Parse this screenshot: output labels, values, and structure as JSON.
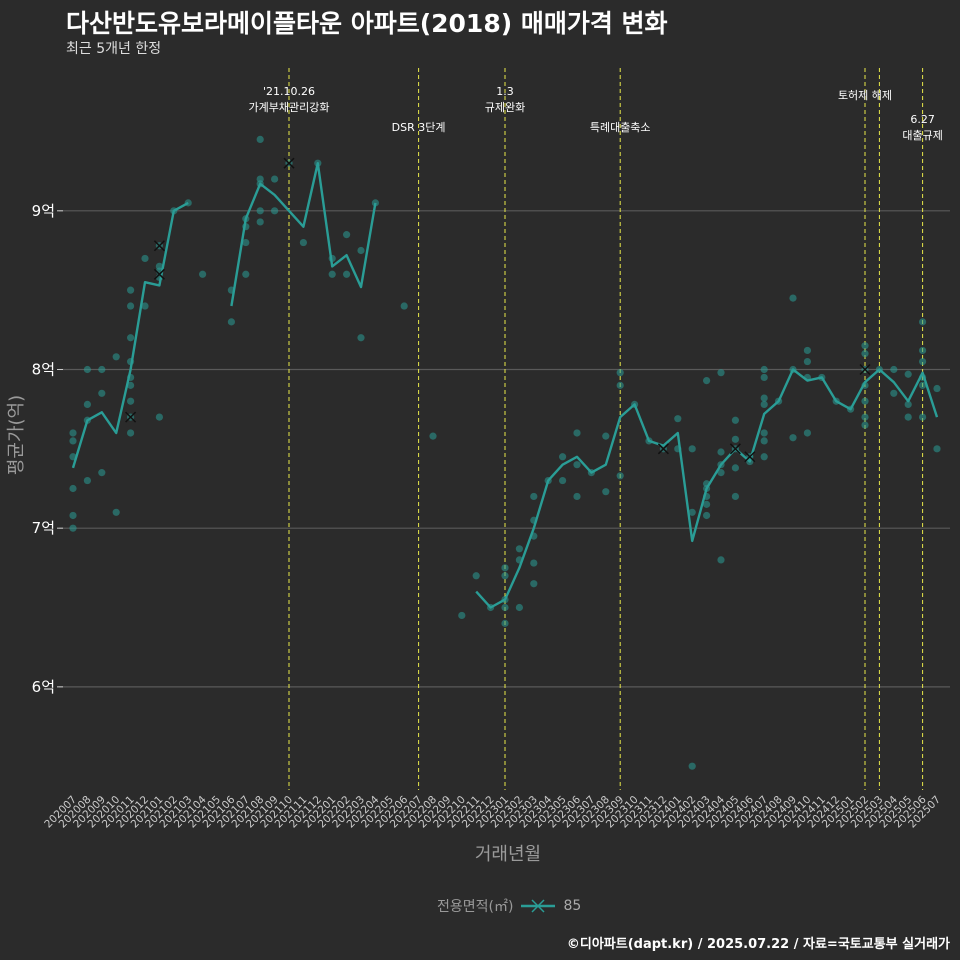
{
  "title": "다산반도유보라메이플타운 아파트(2018) 매매가격 변화",
  "subtitle": "최근 5개년 한정",
  "caption": "©디아파트(dapt.kr) / 2025.07.22 / 자료=국토교통부 실거래가",
  "colors": {
    "background": "#2b2b2b",
    "series": "#2a9d96",
    "grid": "#5a5a5a",
    "event_line": "#e8e84a"
  },
  "legend": {
    "title": "전용면적(㎡)",
    "items": [
      "85"
    ]
  },
  "chart_data": {
    "type": "line",
    "xlabel": "거래년월",
    "ylabel": "평균가(억)",
    "ylim": [
      5.35,
      9.9
    ],
    "yticks": [
      6,
      7,
      8,
      9
    ],
    "ytick_labels": [
      "6억",
      "7억",
      "8억",
      "9억"
    ],
    "grid": true,
    "categories": [
      "202007",
      "202008",
      "202009",
      "202010",
      "202011",
      "202012",
      "202101",
      "202102",
      "202103",
      "202104",
      "202105",
      "202106",
      "202107",
      "202108",
      "202109",
      "202110",
      "202111",
      "202112",
      "202201",
      "202202",
      "202203",
      "202204",
      "202205",
      "202206",
      "202207",
      "202208",
      "202209",
      "202210",
      "202211",
      "202212",
      "202301",
      "202302",
      "202303",
      "202304",
      "202305",
      "202306",
      "202307",
      "202308",
      "202309",
      "202310",
      "202311",
      "202312",
      "202401",
      "202402",
      "202403",
      "202404",
      "202405",
      "202406",
      "202407",
      "202408",
      "202409",
      "202410",
      "202411",
      "202412",
      "202501",
      "202502",
      "202503",
      "202504",
      "202505",
      "202506",
      "202507"
    ],
    "series": [
      {
        "name": "85",
        "mean_values": [
          7.38,
          7.68,
          7.73,
          7.6,
          8.0,
          8.55,
          8.53,
          9.0,
          9.05,
          null,
          null,
          8.4,
          8.95,
          9.17,
          9.1,
          9.0,
          8.9,
          9.3,
          8.65,
          8.72,
          8.52,
          9.05,
          null,
          null,
          null,
          null,
          null,
          null,
          6.6,
          6.5,
          6.55,
          6.75,
          7.0,
          7.3,
          7.4,
          7.45,
          7.35,
          7.4,
          7.7,
          7.78,
          7.55,
          7.52,
          7.6,
          6.92,
          7.25,
          7.4,
          7.5,
          7.42,
          7.72,
          7.8,
          8.0,
          7.93,
          7.95,
          7.8,
          7.75,
          7.92,
          8.0,
          7.92,
          7.8,
          7.98,
          7.7
        ],
        "transactions": [
          [
            0,
            7.0
          ],
          [
            0,
            7.08
          ],
          [
            0,
            7.25
          ],
          [
            0,
            7.45
          ],
          [
            0,
            7.55
          ],
          [
            0,
            7.6
          ],
          [
            1,
            7.3
          ],
          [
            1,
            7.68
          ],
          [
            1,
            7.78
          ],
          [
            1,
            8.0
          ],
          [
            2,
            7.35
          ],
          [
            2,
            7.85
          ],
          [
            2,
            8.0
          ],
          [
            3,
            7.1
          ],
          [
            3,
            8.08
          ],
          [
            4,
            7.6
          ],
          [
            4,
            7.7
          ],
          [
            4,
            7.8
          ],
          [
            4,
            7.9
          ],
          [
            4,
            7.95
          ],
          [
            4,
            8.05
          ],
          [
            4,
            8.2
          ],
          [
            4,
            8.4
          ],
          [
            4,
            8.5
          ],
          [
            5,
            8.4
          ],
          [
            5,
            8.7
          ],
          [
            6,
            7.7
          ],
          [
            6,
            8.58
          ],
          [
            6,
            8.62
          ],
          [
            6,
            8.65
          ],
          [
            6,
            8.78
          ],
          [
            7,
            9.0
          ],
          [
            8,
            9.05
          ],
          [
            9,
            8.6
          ],
          [
            11,
            8.3
          ],
          [
            11,
            8.5
          ],
          [
            12,
            8.6
          ],
          [
            12,
            8.8
          ],
          [
            12,
            8.9
          ],
          [
            12,
            8.95
          ],
          [
            13,
            8.93
          ],
          [
            13,
            9.0
          ],
          [
            13,
            9.17
          ],
          [
            13,
            9.2
          ],
          [
            13,
            9.45
          ],
          [
            14,
            9.0
          ],
          [
            14,
            9.2
          ],
          [
            15,
            9.3
          ],
          [
            16,
            8.8
          ],
          [
            17,
            9.3
          ],
          [
            18,
            8.6
          ],
          [
            18,
            8.7
          ],
          [
            19,
            8.6
          ],
          [
            19,
            8.85
          ],
          [
            20,
            8.2
          ],
          [
            20,
            8.75
          ],
          [
            21,
            9.05
          ],
          [
            23,
            8.4
          ],
          [
            25,
            7.58
          ],
          [
            27,
            6.45
          ],
          [
            28,
            6.7
          ],
          [
            29,
            6.5
          ],
          [
            30,
            6.4
          ],
          [
            30,
            6.5
          ],
          [
            30,
            6.55
          ],
          [
            30,
            6.7
          ],
          [
            30,
            6.75
          ],
          [
            31,
            6.5
          ],
          [
            31,
            6.8
          ],
          [
            31,
            6.87
          ],
          [
            32,
            6.65
          ],
          [
            32,
            6.78
          ],
          [
            32,
            6.95
          ],
          [
            32,
            7.05
          ],
          [
            32,
            7.2
          ],
          [
            33,
            7.3
          ],
          [
            34,
            7.3
          ],
          [
            34,
            7.45
          ],
          [
            35,
            7.2
          ],
          [
            35,
            7.4
          ],
          [
            35,
            7.6
          ],
          [
            36,
            7.35
          ],
          [
            37,
            7.23
          ],
          [
            37,
            7.58
          ],
          [
            38,
            7.33
          ],
          [
            38,
            7.9
          ],
          [
            38,
            7.98
          ],
          [
            39,
            7.78
          ],
          [
            40,
            7.55
          ],
          [
            41,
            7.5
          ],
          [
            42,
            7.5
          ],
          [
            42,
            7.69
          ],
          [
            43,
            5.5
          ],
          [
            43,
            7.1
          ],
          [
            43,
            7.5
          ],
          [
            44,
            7.08
          ],
          [
            44,
            7.15
          ],
          [
            44,
            7.2
          ],
          [
            44,
            7.25
          ],
          [
            44,
            7.28
          ],
          [
            44,
            7.93
          ],
          [
            45,
            6.8
          ],
          [
            45,
            7.35
          ],
          [
            45,
            7.4
          ],
          [
            45,
            7.48
          ],
          [
            45,
            7.98
          ],
          [
            46,
            7.2
          ],
          [
            46,
            7.38
          ],
          [
            46,
            7.5
          ],
          [
            46,
            7.56
          ],
          [
            46,
            7.68
          ],
          [
            47,
            7.42
          ],
          [
            47,
            7.45
          ],
          [
            48,
            7.45
          ],
          [
            48,
            7.55
          ],
          [
            48,
            7.6
          ],
          [
            48,
            7.78
          ],
          [
            48,
            7.82
          ],
          [
            48,
            7.95
          ],
          [
            48,
            8.0
          ],
          [
            49,
            7.8
          ],
          [
            50,
            7.57
          ],
          [
            50,
            8.0
          ],
          [
            50,
            8.45
          ],
          [
            51,
            7.6
          ],
          [
            51,
            7.95
          ],
          [
            51,
            8.05
          ],
          [
            51,
            8.12
          ],
          [
            52,
            7.95
          ],
          [
            53,
            7.8
          ],
          [
            54,
            7.75
          ],
          [
            55,
            7.65
          ],
          [
            55,
            7.7
          ],
          [
            55,
            7.8
          ],
          [
            55,
            7.9
          ],
          [
            55,
            8.0
          ],
          [
            55,
            8.1
          ],
          [
            55,
            8.15
          ],
          [
            56,
            8.0
          ],
          [
            57,
            7.85
          ],
          [
            57,
            8.0
          ],
          [
            58,
            7.7
          ],
          [
            58,
            7.78
          ],
          [
            58,
            7.97
          ],
          [
            59,
            7.7
          ],
          [
            59,
            7.9
          ],
          [
            59,
            7.95
          ],
          [
            59,
            8.05
          ],
          [
            59,
            8.12
          ],
          [
            59,
            8.3
          ],
          [
            60,
            7.5
          ],
          [
            60,
            7.88
          ]
        ],
        "crossed": [
          [
            4,
            7.7
          ],
          [
            6,
            8.6
          ],
          [
            6,
            8.78
          ],
          [
            15,
            9.3
          ],
          [
            41,
            7.5
          ],
          [
            46,
            7.5
          ],
          [
            47,
            7.45
          ],
          [
            55,
            8.0
          ]
        ]
      }
    ],
    "events": [
      {
        "index": 15,
        "line1": "'21.10.26",
        "line2": "가계부채관리강화",
        "row": 0
      },
      {
        "index": 24,
        "line1": "DSR 3단계",
        "line2": "",
        "row": 2
      },
      {
        "index": 30,
        "line1": "1.3",
        "line2": "규제완화",
        "row": 0
      },
      {
        "index": 38,
        "line1": "특례대출축소",
        "line2": "",
        "row": 2
      },
      {
        "index": 55,
        "line1": "토허제 해제",
        "line2": "",
        "row": 1
      },
      {
        "index": 56,
        "line1": "",
        "line2": "",
        "row": 0
      },
      {
        "index": 59,
        "line1": "6.27",
        "line2": "대출규제",
        "row": 3
      }
    ]
  }
}
